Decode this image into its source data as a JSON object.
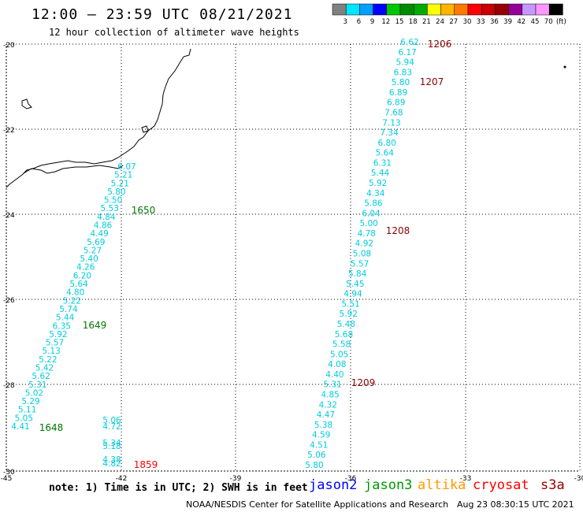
{
  "header": {
    "title": "12:00 – 23:59 UTC 08/21/2021",
    "subtitle": "12 hour collection of altimeter wave heights"
  },
  "legend": {
    "unit": "(ft)",
    "bins": [
      {
        "label": "3",
        "color": "#808080"
      },
      {
        "label": "6",
        "color": "#00e5ff"
      },
      {
        "label": "9",
        "color": "#00a0ff"
      },
      {
        "label": "12",
        "color": "#0000ff"
      },
      {
        "label": "15",
        "color": "#00c800"
      },
      {
        "label": "18",
        "color": "#008c00"
      },
      {
        "label": "21",
        "color": "#00aa00"
      },
      {
        "label": "24",
        "color": "#ffff00"
      },
      {
        "label": "27",
        "color": "#ffb400"
      },
      {
        "label": "30",
        "color": "#ff7800"
      },
      {
        "label": "33",
        "color": "#ff0000"
      },
      {
        "label": "36",
        "color": "#c80000"
      },
      {
        "label": "39",
        "color": "#960000"
      },
      {
        "label": "42",
        "color": "#960096"
      },
      {
        "label": "45",
        "color": "#c896ff"
      },
      {
        "label": "70",
        "color": "#ff96ff"
      },
      {
        "label": "",
        "color": "#000000"
      }
    ]
  },
  "axes": {
    "lat_labels": [
      "-20",
      "-22",
      "-24",
      "-26",
      "-28",
      "-30"
    ],
    "lon_labels": [
      "-45",
      "-42",
      "-39",
      "-36",
      "-33",
      "-30"
    ]
  },
  "tracks": [
    {
      "color": "#00ccdd",
      "values": [
        "6.62",
        "6.17",
        "5.94",
        "6.83",
        "5.80",
        "6.89",
        "6.89",
        "7.68",
        "7.13",
        "7.34",
        "6.80",
        "5.64",
        "6.31",
        "5.44",
        "5.92",
        "4.34",
        "5.86",
        "6.04",
        "5.00",
        "4.78",
        "4.92",
        "5.08",
        "5.57",
        "5.84",
        "5.45",
        "4.94",
        "5.51",
        "5.92",
        "5.48",
        "5.68",
        "5.58",
        "5.05",
        "4.08",
        "4.40",
        "5.31",
        "4.85",
        "4.32",
        "4.47",
        "5.38",
        "4.59",
        "4.51",
        "5.06",
        "5.80"
      ]
    },
    {
      "color": "#00ccdd",
      "values": [
        "6.07",
        "5.21",
        "5.21",
        "5.80",
        "5.50",
        "5.53",
        "4.84",
        "4.86",
        "4.49",
        "5.69",
        "5.27",
        "5.40",
        "4.26",
        "6.20",
        "5.64",
        "4.80",
        "5.22",
        "5.74",
        "5.44",
        "6.35",
        "5.92",
        "5.57",
        "5.13",
        "5.22",
        "5.42",
        "5.62",
        "5.31",
        "5.02",
        "5.29",
        "5.11",
        "5.05",
        "4.41"
      ]
    },
    {
      "color": "#00ccdd",
      "values": [
        "5.06",
        "4.72",
        "5.34",
        "5.18",
        "4.38",
        "4.82"
      ]
    }
  ],
  "time_labels": [
    {
      "text": "1206",
      "color": "#8b0000"
    },
    {
      "text": "1207",
      "color": "#8b0000"
    },
    {
      "text": "1208",
      "color": "#8b0000"
    },
    {
      "text": "1209",
      "color": "#8b0000"
    },
    {
      "text": "1650",
      "color": "#007700"
    },
    {
      "text": "1649",
      "color": "#007700"
    },
    {
      "text": "1648",
      "color": "#007700"
    },
    {
      "text": "1859",
      "color": "#ff0000"
    }
  ],
  "footer": {
    "note": "note: 1) Time is in UTC; 2) SWH is in feet",
    "satellites": [
      {
        "name": "jason2",
        "color": "#0000ff"
      },
      {
        "name": "jason3",
        "color": "#009900"
      },
      {
        "name": "altika",
        "color": "#ff9900"
      },
      {
        "name": "cryosat",
        "color": "#ff0000"
      },
      {
        "name": "s3a",
        "color": "#990000"
      }
    ],
    "credit": "NOAA/NESDIS Center for Satellite Applications and Research",
    "generated": "Aug 23 08:30:15 UTC 2021"
  }
}
